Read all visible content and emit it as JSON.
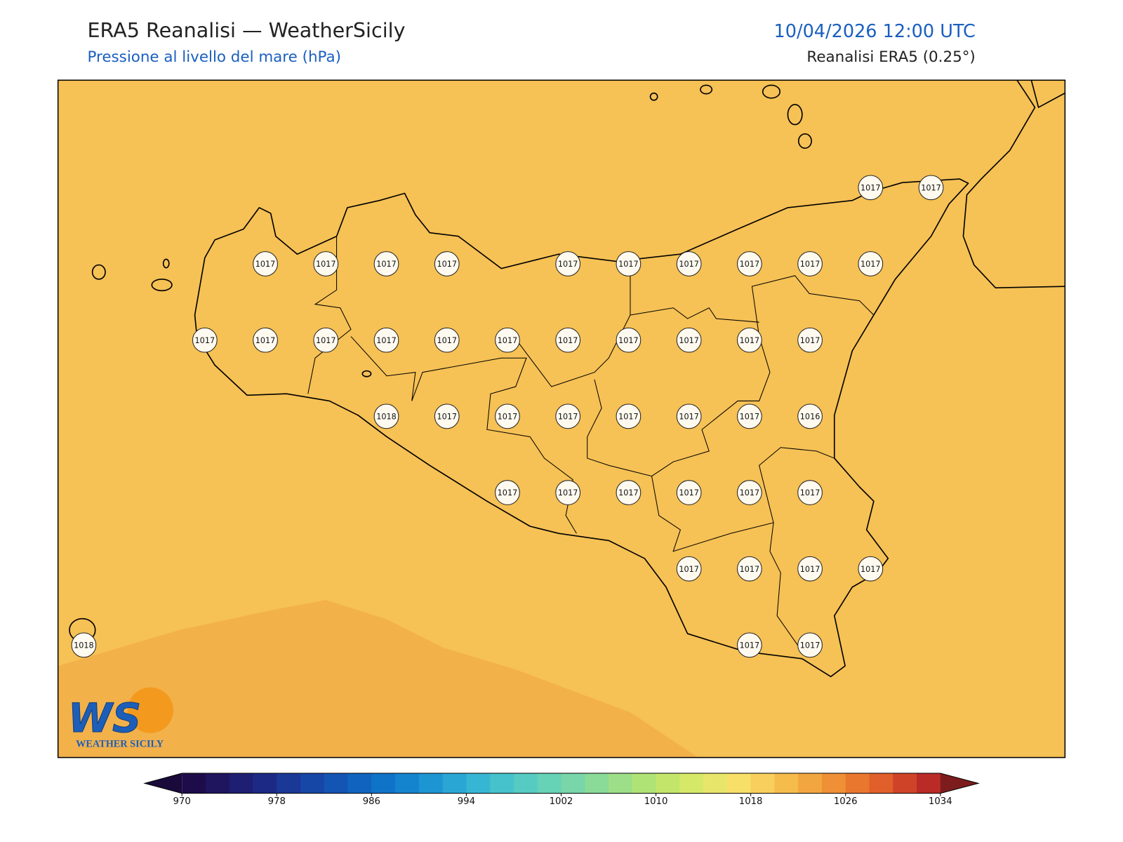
{
  "header": {
    "title": "ERA5 Reanalisi — WeatherSicily",
    "subtitle": "Pressione al livello del mare (hPa)",
    "datetime": "10/04/2026 12:00 UTC",
    "source": "Reanalisi ERA5 (0.25°)"
  },
  "map": {
    "pressure_grid": [
      [
        null,
        null,
        null,
        null,
        null,
        null,
        null,
        null,
        null,
        null,
        null,
        null,
        null,
        1017,
        1017
      ],
      [
        null,
        null,
        null,
        1017,
        1017,
        1017,
        1017,
        null,
        1017,
        1017,
        1017,
        1017,
        1017,
        1017,
        null
      ],
      [
        null,
        null,
        1017,
        1017,
        1017,
        1017,
        1017,
        1017,
        1017,
        1017,
        1017,
        1017,
        1017,
        null,
        null
      ],
      [
        null,
        null,
        null,
        null,
        null,
        1018,
        1017,
        1017,
        1017,
        1017,
        1017,
        1017,
        1016,
        null,
        null
      ],
      [
        null,
        null,
        null,
        null,
        null,
        null,
        null,
        1017,
        1017,
        1017,
        1017,
        1017,
        1017,
        null,
        null
      ],
      [
        null,
        null,
        null,
        null,
        null,
        null,
        null,
        null,
        null,
        null,
        1017,
        1017,
        1017,
        1017,
        null
      ],
      [
        1018,
        null,
        null,
        null,
        null,
        null,
        null,
        null,
        null,
        null,
        null,
        1017,
        1017,
        null,
        null
      ]
    ],
    "background_color": "#f6c155",
    "low_region_color": "#f3b14a"
  },
  "colorbar": {
    "range": [
      970,
      1034
    ],
    "ticks": [
      970,
      978,
      986,
      994,
      1002,
      1010,
      1018,
      1026,
      1034
    ],
    "under_color": "#1a0a3c",
    "over_color": "#7d1c1c",
    "colors": [
      "#1e0c4a",
      "#1f145e",
      "#1e1e72",
      "#1c2a86",
      "#1a3896",
      "#1646a6",
      "#1455b4",
      "#1064c0",
      "#0f74c8",
      "#1484cf",
      "#1e95d3",
      "#2aa6d5",
      "#37b6d3",
      "#45c2cc",
      "#55cbc2",
      "#66d2b6",
      "#78d6a8",
      "#8adb98",
      "#9ddf88",
      "#b0e376",
      "#c3e66a",
      "#d6e868",
      "#e8e66a",
      "#f7df68",
      "#f8cf5c",
      "#f5bc4c",
      "#f2a640",
      "#ef8f36",
      "#ea772e",
      "#e05f2a",
      "#cf4428",
      "#ba2a26"
    ]
  },
  "logo": {
    "mark": "WS",
    "text": "WEATHER SICILY"
  }
}
